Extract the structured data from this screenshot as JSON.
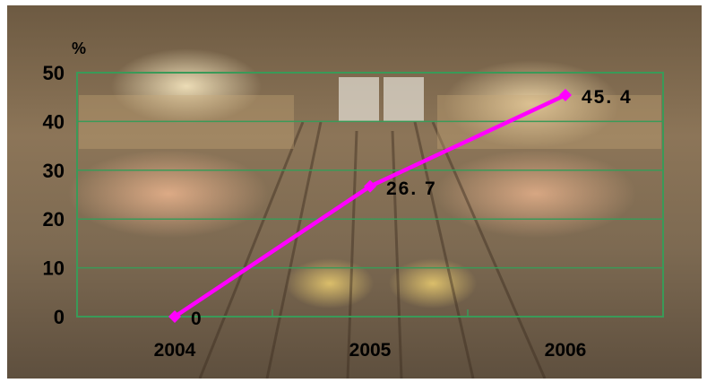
{
  "chart_data": {
    "type": "line",
    "title": "",
    "xlabel": "",
    "ylabel": "%",
    "categories": [
      "2004",
      "2005",
      "2006"
    ],
    "series": [
      {
        "values": [
          0,
          26.7,
          45.4
        ],
        "data_labels": [
          "0",
          "26. 7",
          "45. 4"
        ]
      }
    ],
    "ylim": [
      0,
      50
    ],
    "y_ticks": [
      "0",
      "10",
      "20",
      "30",
      "40",
      "50"
    ],
    "grid": true,
    "legend": "none",
    "colors": {
      "line": "#ff00ff",
      "grid": "#3a9a58",
      "text": "#000000"
    }
  }
}
